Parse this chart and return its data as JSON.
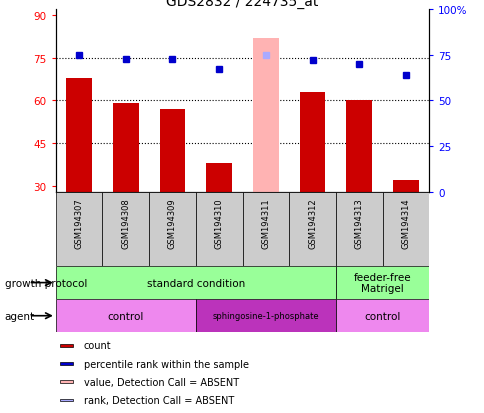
{
  "title": "GDS2832 / 224735_at",
  "samples": [
    "GSM194307",
    "GSM194308",
    "GSM194309",
    "GSM194310",
    "GSM194311",
    "GSM194312",
    "GSM194313",
    "GSM194314"
  ],
  "count_values": [
    68,
    59,
    57,
    38,
    82,
    63,
    60,
    32
  ],
  "percentile_values": [
    75,
    73,
    73,
    67,
    75,
    72,
    70,
    64
  ],
  "absent_mask": [
    false,
    false,
    false,
    false,
    true,
    false,
    false,
    false
  ],
  "ylim_left": [
    28,
    92
  ],
  "ylim_right": [
    0,
    100
  ],
  "yticks_left": [
    30,
    45,
    60,
    75,
    90
  ],
  "yticks_right": [
    0,
    25,
    50,
    75,
    100
  ],
  "bar_color_normal": "#cc0000",
  "bar_color_absent": "#ffb3b3",
  "dot_color_normal": "#0000cc",
  "dot_color_absent": "#aaaaff",
  "growth_protocol_color": "#99ff99",
  "agent_light_color": "#ee88ee",
  "agent_dark_color": "#bb33bb",
  "sample_bg_color": "#cccccc",
  "growth_protocol_groups": [
    {
      "label": "standard condition",
      "start": 0,
      "end": 6
    },
    {
      "label": "feeder-free\nMatrigel",
      "start": 6,
      "end": 8
    }
  ],
  "agent_groups": [
    {
      "label": "control",
      "start": 0,
      "end": 3,
      "color": "#ee88ee"
    },
    {
      "label": "sphingosine-1-phosphate",
      "start": 3,
      "end": 6,
      "color": "#bb33bb"
    },
    {
      "label": "control",
      "start": 6,
      "end": 8,
      "color": "#ee88ee"
    }
  ],
  "legend_items": [
    {
      "color": "#cc0000",
      "label": "count"
    },
    {
      "color": "#0000cc",
      "label": "percentile rank within the sample"
    },
    {
      "color": "#ffb3b3",
      "label": "value, Detection Call = ABSENT"
    },
    {
      "color": "#aaaaff",
      "label": "rank, Detection Call = ABSENT"
    }
  ]
}
